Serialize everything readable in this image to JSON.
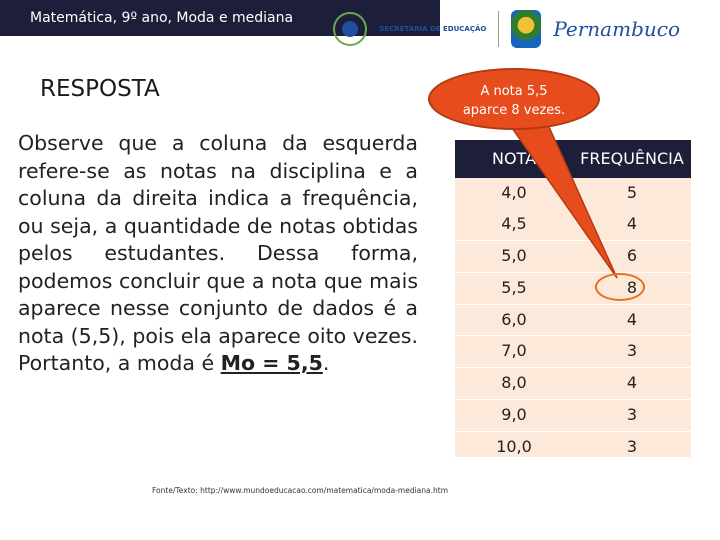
{
  "header": {
    "title": "Matemática, 9º ano, Moda e mediana",
    "secretaria_label": "SECRETARIA DE EDUCAÇÃO",
    "state_logo_text": "Pernambuco"
  },
  "main": {
    "heading": "RESPOSTA",
    "paragraph": "Observe que a coluna da esquerda refere-se as notas na disciplina e a coluna da direita indica a frequência, ou seja, a quantidade de notas obtidas pelos estudantes. Dessa forma, podemos concluir que a nota que mais aparece nesse conjunto de dados é a nota (5,5), pois ela aparece oito vezes. Portanto, a moda é ",
    "answer": "Mo = 5,5",
    "answer_suffix": "."
  },
  "callout": {
    "line1": "A nota 5,5",
    "line2": "aparce 8 vezes.",
    "color": "#e74c1c"
  },
  "table": {
    "headers": [
      "NOTA",
      "FREQUÊNCIA"
    ],
    "rows": [
      [
        "4,0",
        "5"
      ],
      [
        "4,5",
        "4"
      ],
      [
        "5,0",
        "6"
      ],
      [
        "5,5",
        "8"
      ],
      [
        "6,0",
        "4"
      ],
      [
        "7,0",
        "3"
      ],
      [
        "8,0",
        "4"
      ],
      [
        "9,0",
        "3"
      ],
      [
        "10,0",
        "3"
      ]
    ],
    "highlighted_frequency": "8"
  },
  "footer": {
    "source": "Fonte/Texto: http://www.mundoeducacao.com/matematica/moda-mediana.htm"
  }
}
